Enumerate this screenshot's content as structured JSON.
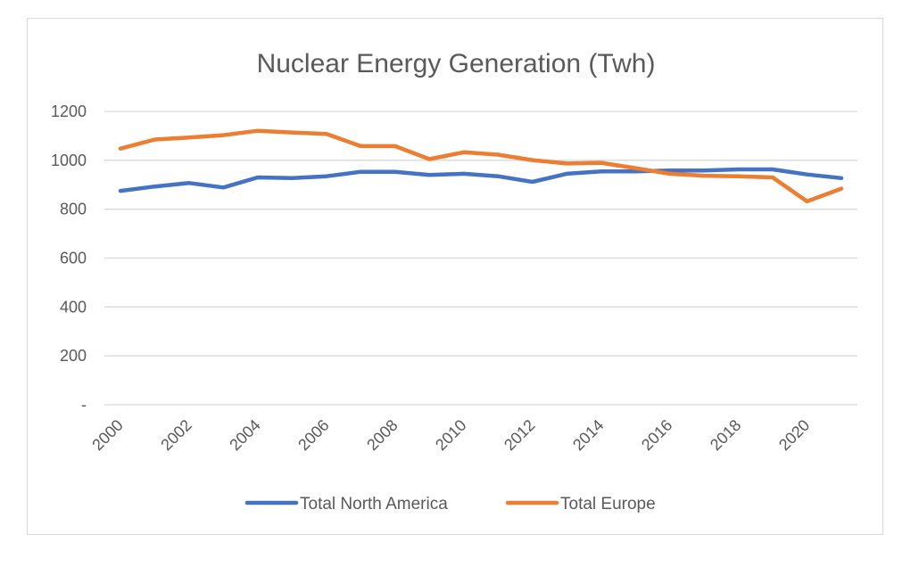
{
  "chart_data": {
    "type": "line",
    "title": "Nuclear Energy Generation (Twh)",
    "xlabel": "",
    "ylabel": "",
    "x": [
      2000,
      2001,
      2002,
      2003,
      2004,
      2005,
      2006,
      2007,
      2008,
      2009,
      2010,
      2011,
      2012,
      2013,
      2014,
      2015,
      2016,
      2017,
      2018,
      2019,
      2020,
      2021
    ],
    "x_tick_labels": [
      "2000",
      "2002",
      "2004",
      "2006",
      "2008",
      "2010",
      "2012",
      "2014",
      "2016",
      "2018",
      "2020"
    ],
    "y_tick_labels": [
      "-",
      "200",
      "400",
      "600",
      "800",
      "1000",
      "1200"
    ],
    "ylim": [
      0,
      1200
    ],
    "grid": true,
    "legend_position": "bottom",
    "series": [
      {
        "name": "Total North America",
        "color": "#4472c4",
        "values": [
          875,
          893,
          907,
          889,
          930,
          927,
          935,
          953,
          953,
          940,
          945,
          935,
          912,
          945,
          955,
          955,
          958,
          958,
          963,
          963,
          942,
          927
        ]
      },
      {
        "name": "Total Europe",
        "color": "#ed7d31",
        "values": [
          1048,
          1085,
          1093,
          1103,
          1121,
          1114,
          1108,
          1058,
          1058,
          1005,
          1033,
          1023,
          1001,
          987,
          990,
          968,
          945,
          937,
          935,
          930,
          832,
          884
        ]
      }
    ]
  }
}
